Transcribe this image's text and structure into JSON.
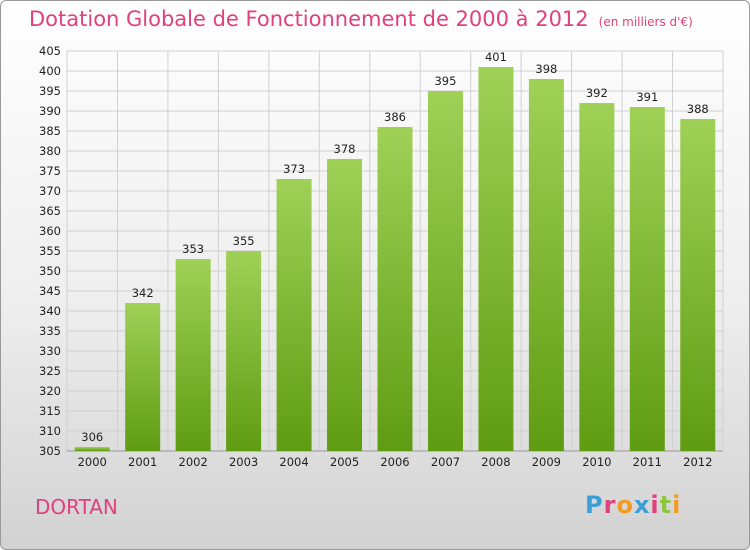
{
  "header": {
    "title": "Dotation Globale de Fonctionnement de 2000 à 2012",
    "unit": "(en milliers d'€)"
  },
  "commune": "DORTAN",
  "logo": {
    "text": "Proxiti",
    "colors": [
      "#3a9fd6",
      "#e0407b",
      "#f39a1f",
      "#3a9fd6",
      "#e0407b",
      "#8cc63f",
      "#f39a1f"
    ]
  },
  "colors": {
    "bar_light": "#9fd157",
    "bar_dark": "#5f9c12",
    "grid": "#d0d0d0",
    "title": "#e0407b"
  },
  "chart_data": {
    "type": "bar",
    "title": "Dotation Globale de Fonctionnement de 2000 à 2012",
    "subtitle": "(en milliers d'€)",
    "categories": [
      "2000",
      "2001",
      "2002",
      "2003",
      "2004",
      "2005",
      "2006",
      "2007",
      "2008",
      "2009",
      "2010",
      "2011",
      "2012"
    ],
    "values": [
      306,
      342,
      353,
      355,
      373,
      378,
      386,
      395,
      401,
      398,
      392,
      391,
      388
    ],
    "ylim": [
      305,
      405
    ],
    "yticks": [
      305,
      310,
      315,
      320,
      325,
      330,
      335,
      340,
      345,
      350,
      355,
      360,
      365,
      370,
      375,
      380,
      385,
      390,
      395,
      400,
      405
    ],
    "grid": true
  }
}
